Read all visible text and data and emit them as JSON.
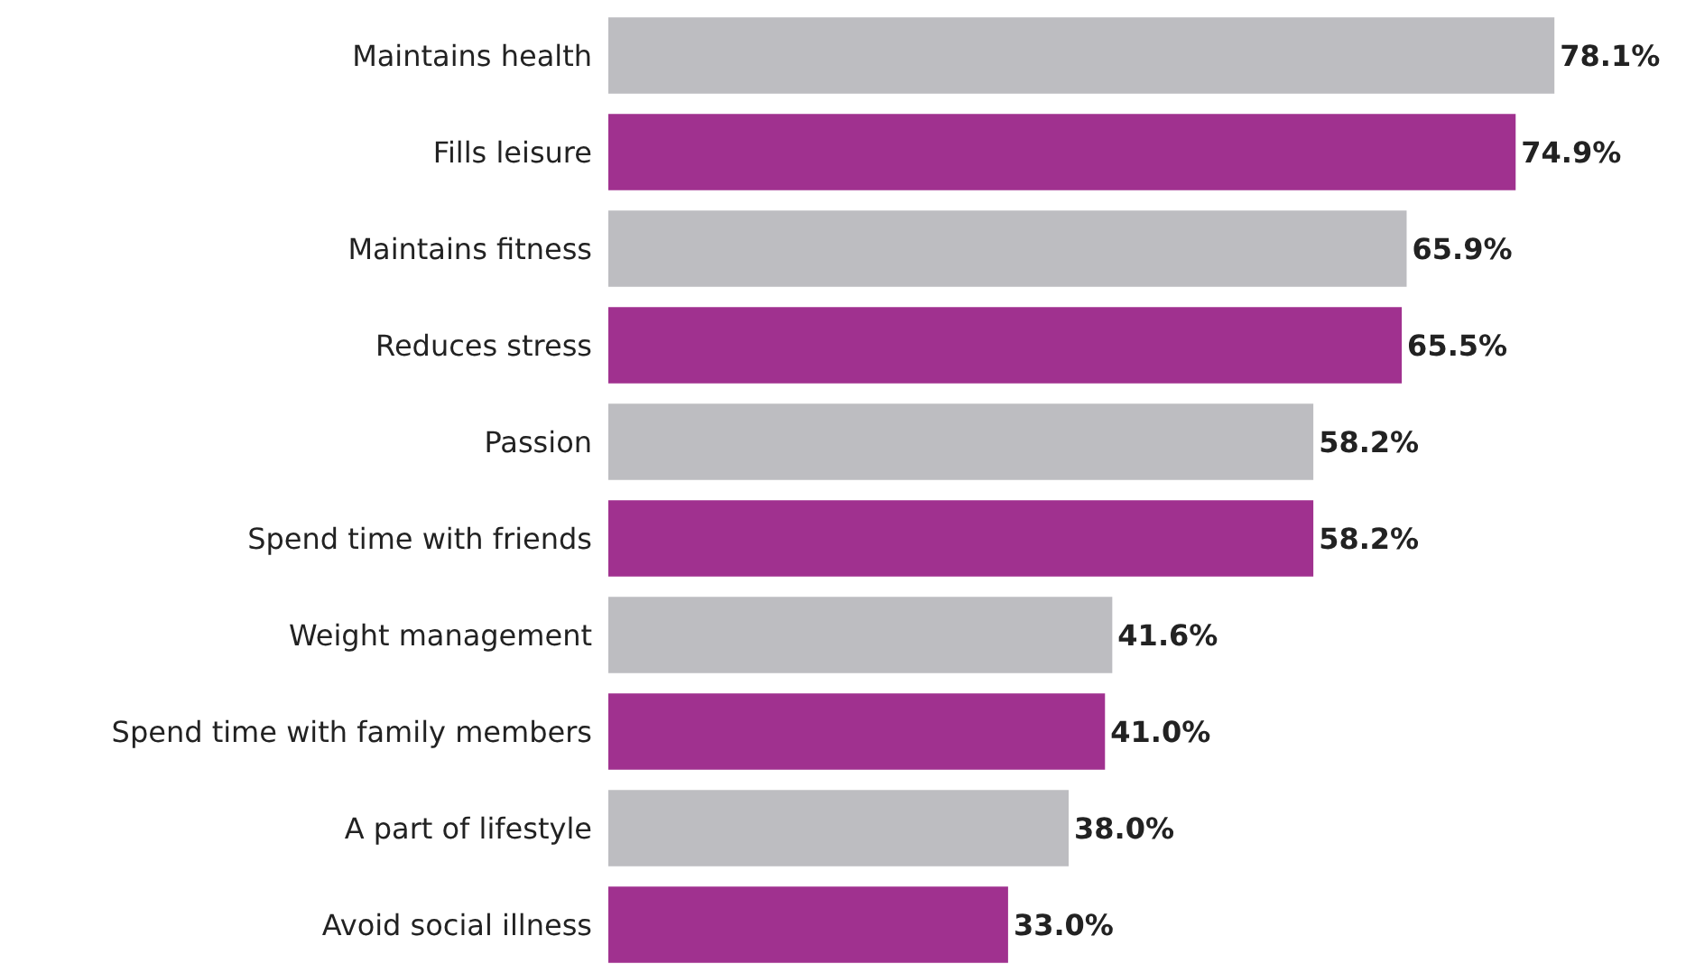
{
  "chart_data": {
    "type": "bar",
    "orientation": "horizontal",
    "categories": [
      "Maintains health",
      "Fills leisure",
      "Maintains fitness",
      "Reduces stress",
      "Passion",
      "Spend time with friends",
      "Weight management",
      "Spend time with family members",
      "A part of lifestyle",
      "Avoid social illness"
    ],
    "values": [
      78.1,
      74.9,
      65.9,
      65.5,
      58.2,
      58.2,
      41.6,
      41.0,
      38.0,
      33.0
    ],
    "colors": [
      "#bdbdc1",
      "#a0318f",
      "#bdbdc1",
      "#a0318f",
      "#bdbdc1",
      "#a0318f",
      "#bdbdc1",
      "#a0318f",
      "#bdbdc1",
      "#a0318f"
    ],
    "value_labels": [
      "78.1%",
      "74.9%",
      "65.9%",
      "65.5%",
      "58.2%",
      "58.2%",
      "41.6%",
      "41.0%",
      "38.0%",
      "33.0%"
    ]
  }
}
